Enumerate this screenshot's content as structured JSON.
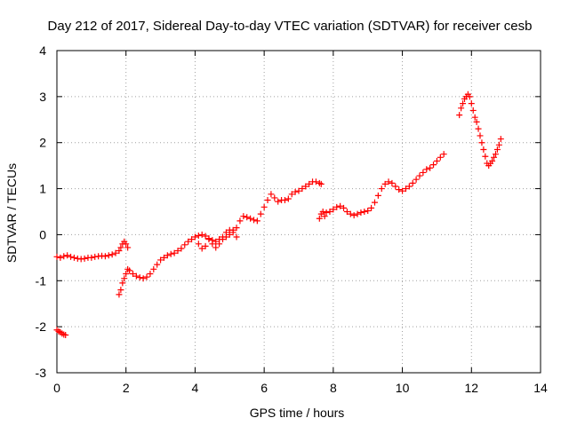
{
  "chart_data": {
    "type": "scatter",
    "title": "Day 212 of 2017, Sidereal Day-to-day VTEC variation (SDTVAR) for receiver cesb",
    "xlabel": "GPS time / hours",
    "ylabel": "SDTVAR / TECUs",
    "xlim": [
      0,
      14
    ],
    "ylim": [
      -3,
      4
    ],
    "xticks": [
      0,
      2,
      4,
      6,
      8,
      10,
      12,
      14
    ],
    "yticks": [
      -3,
      -2,
      -1,
      0,
      1,
      2,
      3,
      4
    ],
    "grid": true,
    "marker": "plus",
    "color": "#ff0000",
    "series": [
      {
        "x": [
          0.0,
          0.05,
          0.1,
          0.15,
          0.2,
          0.25
        ],
        "y": [
          -2.07,
          -2.1,
          -2.12,
          -2.15,
          -2.17,
          -2.18
        ]
      },
      {
        "x": [
          0.0,
          0.1,
          0.2,
          0.3,
          0.4,
          0.5,
          0.6,
          0.7,
          0.8,
          0.9,
          1.0,
          1.1,
          1.2,
          1.3,
          1.4,
          1.5,
          1.6,
          1.7,
          1.8,
          1.85,
          1.9,
          1.95,
          2.0,
          2.05
        ],
        "y": [
          -0.48,
          -0.5,
          -0.47,
          -0.45,
          -0.48,
          -0.5,
          -0.52,
          -0.53,
          -0.52,
          -0.5,
          -0.5,
          -0.48,
          -0.47,
          -0.46,
          -0.47,
          -0.45,
          -0.43,
          -0.4,
          -0.35,
          -0.28,
          -0.2,
          -0.15,
          -0.2,
          -0.28
        ]
      },
      {
        "x": [
          1.8,
          1.85,
          1.9,
          1.95,
          2.0,
          2.05,
          2.1,
          2.2,
          2.3,
          2.4,
          2.5,
          2.6,
          2.7,
          2.8,
          2.9,
          3.0,
          3.1,
          3.2,
          3.3,
          3.4,
          3.5,
          3.6,
          3.7,
          3.8,
          3.9,
          4.0,
          4.1,
          4.2,
          4.3,
          4.4,
          4.5,
          4.6,
          4.7,
          4.8,
          4.9,
          5.0,
          5.1,
          5.2,
          5.3,
          5.4,
          5.5,
          5.6,
          5.7,
          5.8,
          5.9,
          6.0,
          6.1,
          6.2,
          6.3,
          6.4,
          6.5,
          6.6,
          6.7,
          6.8,
          6.9,
          7.0,
          7.1,
          7.2,
          7.3,
          7.4,
          7.5,
          7.6,
          7.65
        ],
        "y": [
          -1.3,
          -1.2,
          -1.05,
          -0.95,
          -0.85,
          -0.75,
          -0.78,
          -0.85,
          -0.9,
          -0.93,
          -0.95,
          -0.92,
          -0.85,
          -0.75,
          -0.65,
          -0.55,
          -0.5,
          -0.45,
          -0.42,
          -0.4,
          -0.35,
          -0.3,
          -0.22,
          -0.15,
          -0.1,
          -0.05,
          -0.02,
          0.0,
          -0.03,
          -0.08,
          -0.12,
          -0.15,
          -0.1,
          -0.05,
          0.05,
          0.1,
          0.1,
          0.15,
          0.3,
          0.4,
          0.38,
          0.35,
          0.32,
          0.3,
          0.45,
          0.6,
          0.75,
          0.88,
          0.8,
          0.72,
          0.75,
          0.75,
          0.78,
          0.88,
          0.93,
          0.95,
          1.0,
          1.05,
          1.1,
          1.15,
          1.15,
          1.12,
          1.1
        ]
      },
      {
        "x": [
          4.1,
          4.2,
          4.3,
          4.4,
          4.5,
          4.6,
          4.7,
          4.8,
          4.9,
          5.0,
          5.1,
          5.2
        ],
        "y": [
          -0.2,
          -0.3,
          -0.25,
          -0.1,
          -0.2,
          -0.28,
          -0.2,
          -0.1,
          -0.05,
          0.0,
          0.05,
          -0.05
        ]
      },
      {
        "x": [
          7.6,
          7.65,
          7.7,
          7.75,
          7.8,
          7.9,
          8.0,
          8.1,
          8.2,
          8.3,
          8.4,
          8.5,
          8.6,
          8.7,
          8.8,
          8.9,
          9.0,
          9.1,
          9.2,
          9.3,
          9.4,
          9.5,
          9.6,
          9.7,
          9.8,
          9.9,
          10.0,
          10.1,
          10.2,
          10.3,
          10.4,
          10.5,
          10.6,
          10.7,
          10.8,
          10.9,
          11.0,
          11.1,
          11.2
        ],
        "y": [
          0.35,
          0.45,
          0.5,
          0.4,
          0.48,
          0.5,
          0.55,
          0.6,
          0.62,
          0.58,
          0.5,
          0.45,
          0.42,
          0.45,
          0.48,
          0.5,
          0.52,
          0.58,
          0.7,
          0.85,
          1.0,
          1.1,
          1.15,
          1.12,
          1.05,
          0.98,
          0.95,
          1.0,
          1.05,
          1.12,
          1.2,
          1.28,
          1.35,
          1.42,
          1.45,
          1.52,
          1.6,
          1.68,
          1.75
        ]
      },
      {
        "x": [
          11.65,
          11.7,
          11.75,
          11.8,
          11.85,
          11.9,
          11.95,
          12.0,
          12.05,
          12.1,
          12.15,
          12.2,
          12.25,
          12.3,
          12.35,
          12.4,
          12.45,
          12.5,
          12.55,
          12.6,
          12.65,
          12.7,
          12.75,
          12.8,
          12.85
        ],
        "y": [
          2.6,
          2.75,
          2.85,
          2.95,
          3.0,
          3.05,
          3.0,
          2.85,
          2.7,
          2.55,
          2.45,
          2.3,
          2.15,
          2.0,
          1.85,
          1.7,
          1.55,
          1.5,
          1.55,
          1.6,
          1.68,
          1.75,
          1.85,
          1.95,
          2.08
        ]
      }
    ]
  }
}
